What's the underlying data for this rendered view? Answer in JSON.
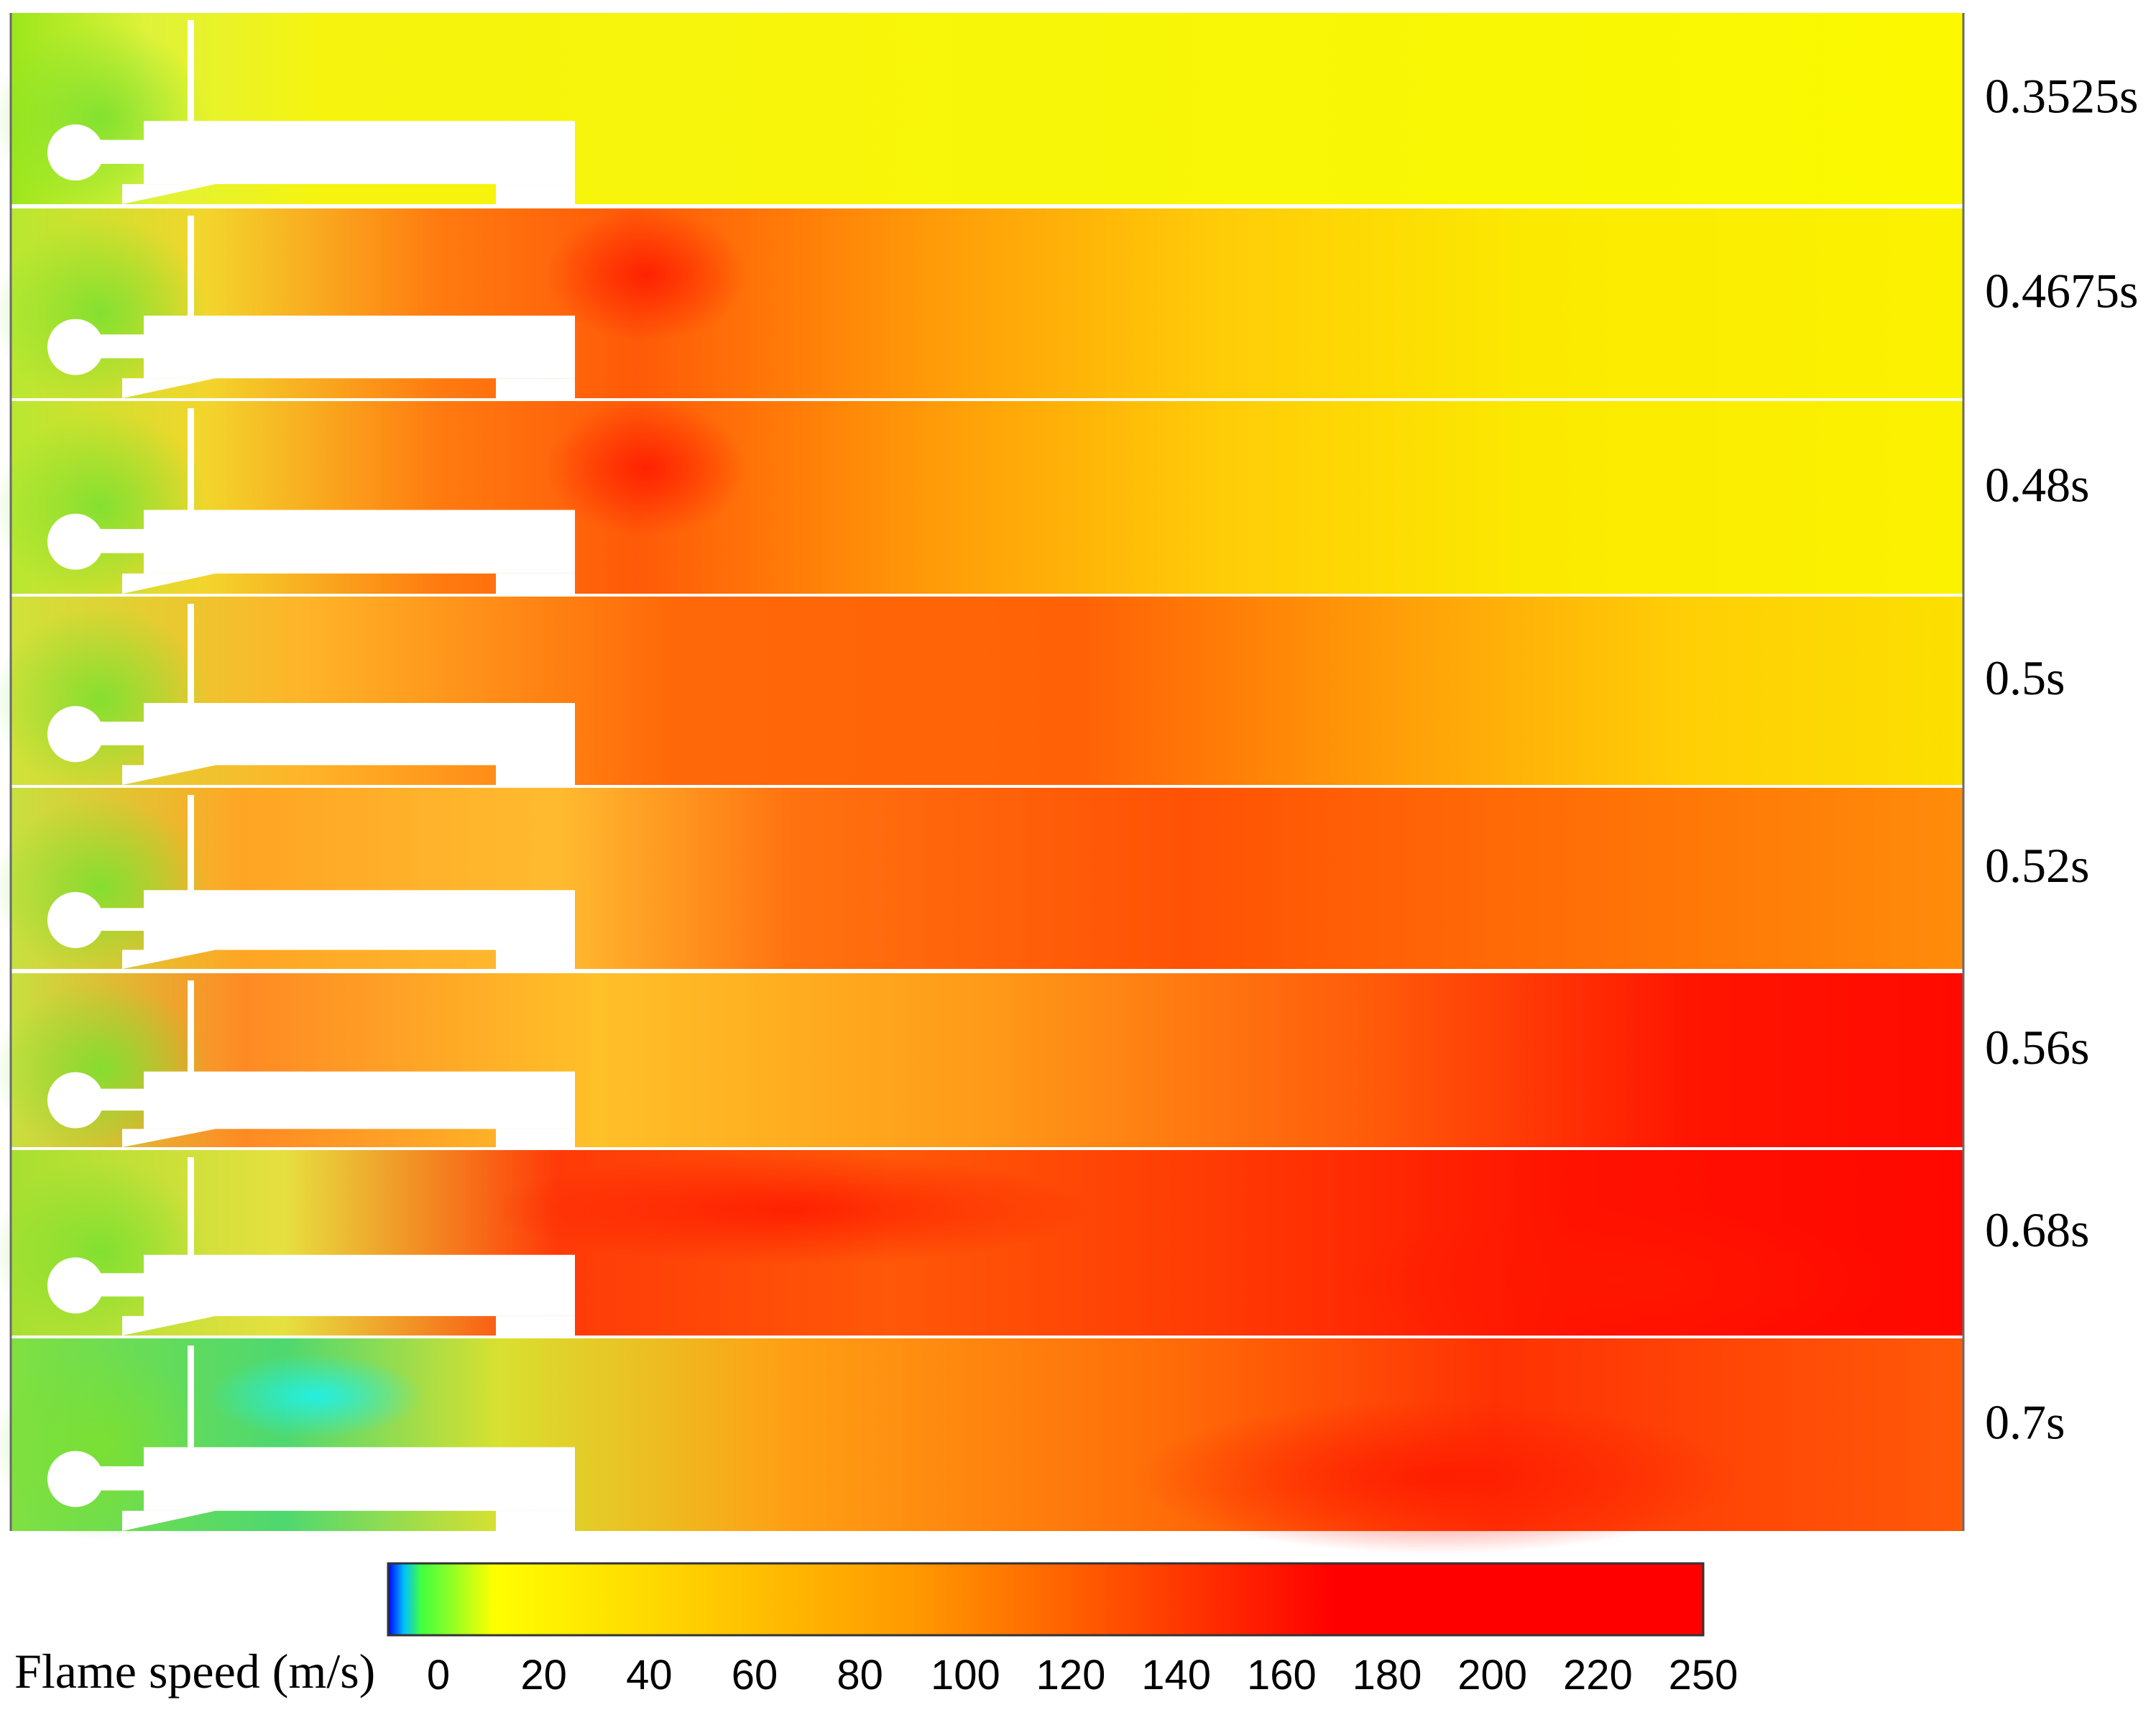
{
  "figure": {
    "panels": [
      {
        "time": "0.3525s",
        "field": "uniform-yellow"
      },
      {
        "time": "0.4675s",
        "field": "front-mid"
      },
      {
        "time": "0.48s",
        "field": "front-mid"
      },
      {
        "time": "0.5s",
        "field": "front-advanced"
      },
      {
        "time": "0.52s",
        "field": "orange-full"
      },
      {
        "time": "0.56s",
        "field": "red-right"
      },
      {
        "time": "0.68s",
        "field": "red-band"
      },
      {
        "time": "0.7s",
        "field": "turbulent"
      }
    ]
  },
  "colorbar": {
    "title": "Flame speed (m/s)",
    "ticks": [
      "0",
      "20",
      "40",
      "60",
      "80",
      "100",
      "120",
      "140",
      "160",
      "180",
      "200",
      "220",
      "250"
    ],
    "range": [
      0,
      250
    ],
    "colors": [
      "#0000ff",
      "#00ffff",
      "#55ff00",
      "#ffff00",
      "#ff9900",
      "#ff0000"
    ]
  }
}
